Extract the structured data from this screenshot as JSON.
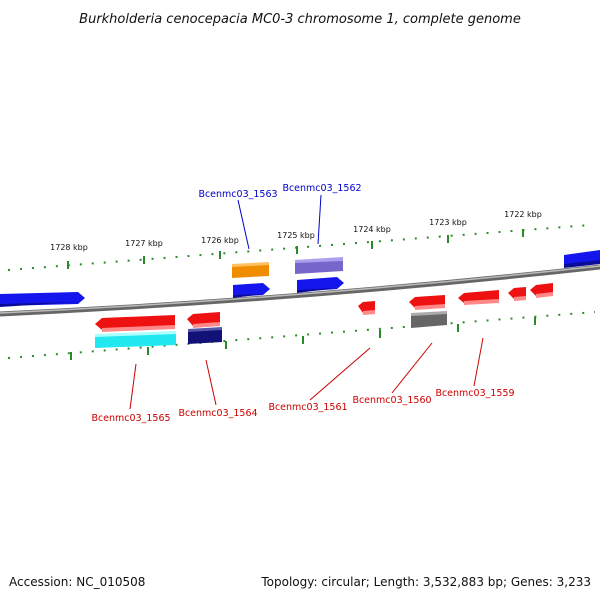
{
  "title": "Burkholderia cenocepacia MC0-3 chromosome 1, complete genome",
  "footer": {
    "accession": "Accession: NC_010508",
    "topology": "Topology: circular; Length: 3,532,883 bp; Genes: 3,233"
  },
  "scale_labels": [
    "1728 kbp",
    "1727 kbp",
    "1726 kbp",
    "1725 kbp",
    "1724 kbp",
    "1723 kbp",
    "1722 kbp"
  ],
  "gene_labels": [
    {
      "text": "Bcenmc03_1563",
      "strand": "upper",
      "color": "#0000cc"
    },
    {
      "text": "Bcenmc03_1562",
      "strand": "upper",
      "color": "#0000cc"
    },
    {
      "text": "Bcenmc03_1565",
      "strand": "lower",
      "color": "#cc0000"
    },
    {
      "text": "Bcenmc03_1564",
      "strand": "lower",
      "color": "#cc0000"
    },
    {
      "text": "Bcenmc03_1561",
      "strand": "lower",
      "color": "#cc0000"
    },
    {
      "text": "Bcenmc03_1560",
      "strand": "lower",
      "color": "#cc0000"
    },
    {
      "text": "Bcenmc03_1559",
      "strand": "lower",
      "color": "#cc0000"
    }
  ],
  "colors": {
    "forward": "#1515ee",
    "reverse": "#ee1111",
    "orange": "#f08c00",
    "purple": "#7766cc",
    "cyan": "#22e8f0",
    "navy": "#111177",
    "gray": "#666666",
    "backbone": "#888888",
    "tick": "#2a8a2a"
  }
}
